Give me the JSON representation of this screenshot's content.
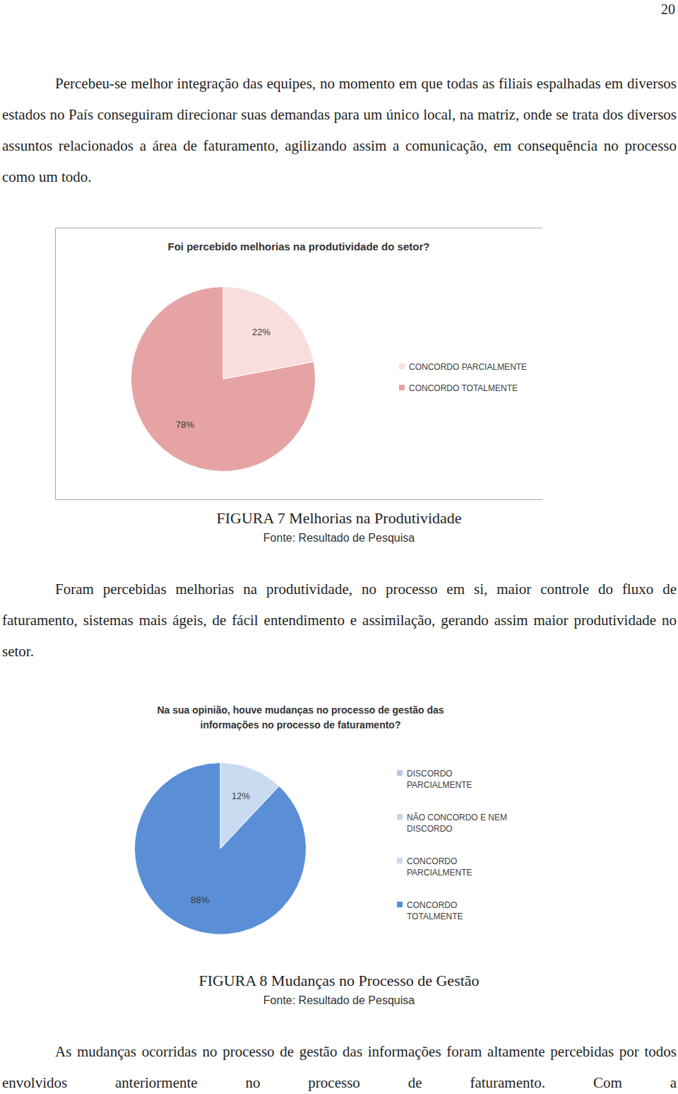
{
  "page_number": 20,
  "paragraphs": [
    "Percebeu-se melhor integração das equipes, no momento em que todas as filiais espalhadas em diversos estados no País conseguiram direcionar suas demandas para um único local, na matriz, onde se trata dos diversos assuntos relacionados a área de faturamento, agilizando assim a comunicação, em consequência no processo como um todo.",
    "Foram percebidas melhorias na produtividade, no processo em si, maior controle do fluxo de faturamento, sistemas mais ágeis, de fácil entendimento e assimilação, gerando assim maior produtividade no setor.",
    "As mudanças ocorridas no processo de gestão das informações foram altamente percebidas por todos envolvidos anteriormente no processo de faturamento. Com a"
  ],
  "figures": [
    {
      "caption": "FIGURA 7 Melhorias na Produtividade",
      "source": "Fonte: Resultado de Pesquisa"
    },
    {
      "caption": "FIGURA 8 Mudanças no Processo de Gestão",
      "source": "Fonte: Resultado de Pesquisa"
    }
  ],
  "chart_data": [
    {
      "type": "pie",
      "title": "Foi percebido melhorias na produtividade do setor?",
      "categories": [
        "CONCORDO PARCIALMENTE",
        "CONCORDO TOTALMENTE"
      ],
      "values": [
        22,
        78
      ],
      "value_labels": [
        "22%",
        "78%"
      ],
      "colors": [
        "#f9dede",
        "#e6a3a3"
      ],
      "legend": "right",
      "data_labels": true
    },
    {
      "type": "pie",
      "title": "Na sua opinião, houve mudanças no processo de gestão das informações no processo de faturamento?",
      "categories": [
        "DISCORDO PARCIALMENTE",
        "NÃO CONCORDO E NEM DISCORDO",
        "CONCORDO PARCIALMENTE",
        "CONCORDO TOTALMENTE"
      ],
      "values": [
        0,
        0,
        12,
        88
      ],
      "value_labels": [
        null,
        null,
        "12%",
        "88%"
      ],
      "colors": [
        "#b7c9e2",
        "#c4d5ea",
        "#c9dbf1",
        "#5a8fd8"
      ],
      "legend": "right",
      "data_labels": true
    }
  ]
}
